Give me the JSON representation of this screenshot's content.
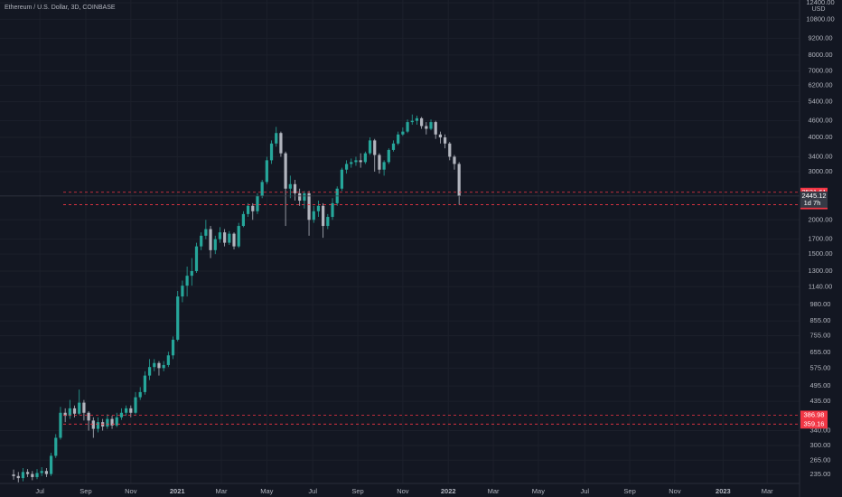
{
  "chart_data": {
    "type": "candlestick",
    "title": "Ethereum / U.S. Dollar, 3D, COINBASE",
    "currency": "USD",
    "log_scale": true,
    "grid": true,
    "up_color": "#26a69a",
    "down_color": "#b2b5be",
    "level_color": "#f23645",
    "open": [
      235,
      232,
      228,
      240,
      236,
      230,
      238,
      242,
      236,
      275,
      320,
      395,
      385,
      410,
      392,
      430,
      395,
      370,
      345,
      365,
      352,
      375,
      355,
      380,
      395,
      410,
      395,
      450,
      470,
      540,
      580,
      600,
      575,
      590,
      640,
      730,
      1050,
      1150,
      1250,
      1300,
      1600,
      1750,
      1850,
      1550,
      1700,
      1800,
      1650,
      1780,
      1600,
      1900,
      2100,
      2250,
      2150,
      2450,
      2750,
      3300,
      3800,
      4150,
      3500,
      2600,
      2700,
      2500,
      2350,
      2500,
      2000,
      2150,
      2250,
      1900,
      2050,
      2300,
      2600,
      3050,
      3200,
      3250,
      3300,
      3250,
      3500,
      3900,
      3450,
      3050,
      3250,
      3600,
      3800,
      4100,
      4200,
      4550,
      4600,
      4700,
      4400,
      4300,
      4550,
      4100,
      4000,
      3800,
      3400,
      3200
    ],
    "high": [
      245,
      240,
      248,
      246,
      242,
      246,
      250,
      248,
      282,
      330,
      415,
      410,
      440,
      420,
      480,
      440,
      400,
      380,
      380,
      375,
      390,
      385,
      395,
      410,
      420,
      420,
      470,
      490,
      560,
      620,
      620,
      610,
      610,
      660,
      750,
      1100,
      1200,
      1350,
      1450,
      1650,
      1800,
      2000,
      1900,
      1750,
      1880,
      1850,
      1820,
      1800,
      1950,
      2150,
      2300,
      2300,
      2500,
      2800,
      3400,
      3900,
      4370,
      4200,
      3550,
      2900,
      2800,
      2600,
      2550,
      2550,
      2250,
      2350,
      2300,
      2100,
      2400,
      2650,
      3100,
      3300,
      3350,
      3400,
      3500,
      3550,
      4000,
      3950,
      3500,
      3300,
      3650,
      3900,
      4200,
      4350,
      4650,
      4850,
      4800,
      4750,
      4550,
      4650,
      4600,
      4200,
      4100,
      3850,
      3450,
      3250
    ],
    "low": [
      225,
      220,
      222,
      230,
      224,
      226,
      232,
      230,
      232,
      270,
      315,
      365,
      375,
      380,
      388,
      370,
      340,
      320,
      335,
      340,
      345,
      345,
      350,
      372,
      385,
      380,
      390,
      440,
      460,
      520,
      560,
      540,
      560,
      580,
      620,
      720,
      1000,
      1050,
      1150,
      1280,
      1550,
      1700,
      1450,
      1500,
      1650,
      1600,
      1620,
      1560,
      1580,
      1880,
      2050,
      2000,
      2100,
      2400,
      2700,
      3200,
      3700,
      3400,
      1900,
      2400,
      2350,
      2250,
      2200,
      1750,
      1950,
      2050,
      1720,
      1850,
      2000,
      2250,
      2550,
      2950,
      3100,
      3150,
      3100,
      3200,
      3450,
      3000,
      2950,
      2900,
      3200,
      3550,
      3750,
      4050,
      4150,
      4450,
      4450,
      4300,
      4100,
      4250,
      3950,
      3800,
      3650,
      3300,
      3050,
      2270
    ],
    "close": [
      232,
      228,
      240,
      236,
      230,
      238,
      242,
      236,
      275,
      320,
      395,
      385,
      410,
      392,
      430,
      395,
      370,
      345,
      365,
      352,
      375,
      355,
      380,
      395,
      410,
      395,
      450,
      470,
      540,
      580,
      600,
      575,
      590,
      640,
      730,
      1050,
      1150,
      1250,
      1300,
      1600,
      1750,
      1850,
      1550,
      1700,
      1800,
      1650,
      1780,
      1600,
      1900,
      2100,
      2250,
      2150,
      2450,
      2750,
      3300,
      3800,
      4150,
      3500,
      2600,
      2700,
      2500,
      2350,
      2500,
      2000,
      2150,
      2250,
      1900,
      2050,
      2300,
      2600,
      3050,
      3200,
      3250,
      3300,
      3250,
      3500,
      3900,
      3450,
      3050,
      3250,
      3600,
      3800,
      4100,
      4200,
      4550,
      4600,
      4700,
      4400,
      4300,
      4550,
      4100,
      4000,
      3800,
      3400,
      3200,
      2445
    ],
    "xlim": [
      -2.9,
      167.6
    ],
    "xticks": [
      {
        "value": 5.6,
        "label": "Jul"
      },
      {
        "value": 15.4,
        "label": "Sep"
      },
      {
        "value": 25.0,
        "label": "Nov"
      },
      {
        "value": 34.9,
        "label": "2021"
      },
      {
        "value": 44.3,
        "label": "Mar"
      },
      {
        "value": 54.0,
        "label": "May"
      },
      {
        "value": 63.8,
        "label": "Jul"
      },
      {
        "value": 73.4,
        "label": "Sep"
      },
      {
        "value": 83.0,
        "label": "Nov"
      },
      {
        "value": 92.7,
        "label": "2022"
      },
      {
        "value": 102.3,
        "label": "Mar"
      },
      {
        "value": 111.9,
        "label": "May"
      },
      {
        "value": 121.8,
        "label": "Jul"
      },
      {
        "value": 131.4,
        "label": "Sep"
      },
      {
        "value": 141.0,
        "label": "Nov"
      },
      {
        "value": 151.3,
        "label": "2023"
      },
      {
        "value": 160.7,
        "label": "Mar"
      }
    ],
    "ylim": [
      218,
      12700
    ],
    "yticks": [
      {
        "value": 235,
        "label": "235.00"
      },
      {
        "value": 265,
        "label": "265.00"
      },
      {
        "value": 300,
        "label": "300.00"
      },
      {
        "value": 340,
        "label": "340.00"
      },
      {
        "value": 435,
        "label": "435.00"
      },
      {
        "value": 495,
        "label": "495.00"
      },
      {
        "value": 575,
        "label": "575.00"
      },
      {
        "value": 655,
        "label": "655.00"
      },
      {
        "value": 755,
        "label": "755.00"
      },
      {
        "value": 855,
        "label": "855.00"
      },
      {
        "value": 980,
        "label": "980.00"
      },
      {
        "value": 1140,
        "label": "1140.00"
      },
      {
        "value": 1300,
        "label": "1300.00"
      },
      {
        "value": 1500,
        "label": "1500.00"
      },
      {
        "value": 1700,
        "label": "1700.00"
      },
      {
        "value": 2000,
        "label": "2000.00"
      },
      {
        "value": 3000,
        "label": "3000.00"
      },
      {
        "value": 3400,
        "label": "3400.00"
      },
      {
        "value": 4000,
        "label": "4000.00"
      },
      {
        "value": 4600,
        "label": "4600.00"
      },
      {
        "value": 5400,
        "label": "5400.00"
      },
      {
        "value": 6200,
        "label": "6200.00"
      },
      {
        "value": 7000,
        "label": "7000.00"
      },
      {
        "value": 8000,
        "label": "8000.00"
      },
      {
        "value": 9200,
        "label": "9200.00"
      },
      {
        "value": 10800,
        "label": "10800.00"
      },
      {
        "value": 12400,
        "label": "12400.00"
      }
    ],
    "levels": [
      2521.61,
      2270.77,
      386.98,
      359.16
    ],
    "last_price": 2445.12,
    "countdown": "1d 7h"
  }
}
